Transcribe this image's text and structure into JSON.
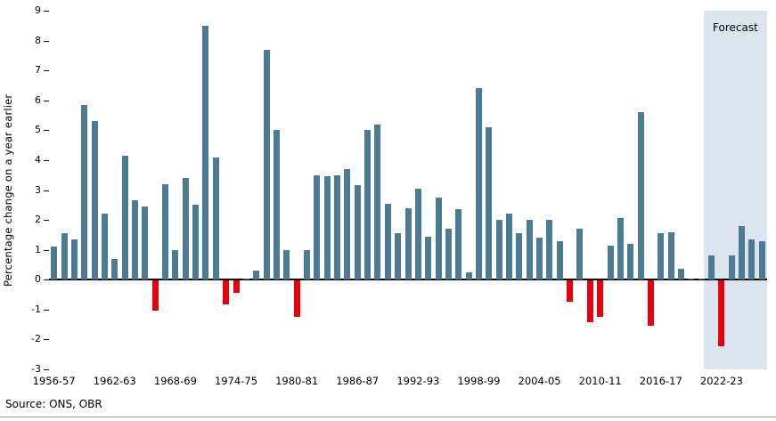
{
  "page": {
    "source_note": "Source: ONS, OBR"
  },
  "chart_data": {
    "type": "bar",
    "title": "",
    "xlabel": "",
    "ylabel": "Percentage change on a year earlier",
    "ylim": [
      -3,
      9
    ],
    "grid": false,
    "legend": "none",
    "yticks": [
      9,
      8,
      7,
      6,
      5,
      4,
      3,
      2,
      1,
      0,
      -1,
      -2,
      -3
    ],
    "xtick_labels": [
      "1956-57",
      "1962-63",
      "1968-69",
      "1974-75",
      "1980-81",
      "1986-87",
      "1992-93",
      "1998-99",
      "2004-05",
      "2010-11",
      "2016-17",
      "2022-23"
    ],
    "xtick_indices": [
      0,
      6,
      12,
      18,
      24,
      30,
      36,
      42,
      48,
      54,
      60,
      66
    ],
    "categories": [
      "1956-57",
      "1957-58",
      "1958-59",
      "1959-60",
      "1960-61",
      "1961-62",
      "1962-63",
      "1963-64",
      "1964-65",
      "1965-66",
      "1966-67",
      "1967-68",
      "1968-69",
      "1969-70",
      "1970-71",
      "1971-72",
      "1972-73",
      "1973-74",
      "1974-75",
      "1975-76",
      "1976-77",
      "1977-78",
      "1978-79",
      "1979-80",
      "1980-81",
      "1981-82",
      "1982-83",
      "1983-84",
      "1984-85",
      "1985-86",
      "1986-87",
      "1987-88",
      "1988-89",
      "1989-90",
      "1990-91",
      "1991-92",
      "1992-93",
      "1993-94",
      "1994-95",
      "1995-96",
      "1996-97",
      "1997-98",
      "1998-99",
      "1999-00",
      "2000-01",
      "2001-02",
      "2002-03",
      "2003-04",
      "2004-05",
      "2005-06",
      "2006-07",
      "2007-08",
      "2008-09",
      "2009-10",
      "2010-11",
      "2011-12",
      "2012-13",
      "2013-14",
      "2014-15",
      "2015-16",
      "2016-17",
      "2017-18",
      "2018-19",
      "2019-20",
      "2020-21",
      "2021-22",
      "2022-23",
      "2023-24",
      "2024-25",
      "2025-26",
      "2026-27"
    ],
    "values": [
      1.1,
      1.55,
      1.35,
      5.85,
      5.3,
      2.2,
      0.7,
      4.15,
      2.65,
      2.45,
      -1.0,
      3.2,
      1.0,
      3.4,
      2.5,
      8.5,
      4.1,
      -0.8,
      -0.4,
      0.05,
      0.3,
      7.7,
      5.0,
      1.0,
      -1.2,
      1.0,
      3.5,
      3.45,
      3.5,
      3.7,
      3.15,
      5.0,
      5.2,
      2.55,
      1.55,
      2.4,
      3.05,
      1.45,
      2.75,
      1.7,
      2.35,
      0.25,
      6.4,
      5.1,
      2.0,
      2.2,
      1.55,
      2.0,
      1.4,
      2.0,
      1.3,
      -0.7,
      1.7,
      -1.4,
      -1.2,
      1.15,
      2.05,
      1.2,
      5.6,
      -1.5,
      1.55,
      1.6,
      0.35,
      0.05,
      0.05,
      0.8,
      -2.2,
      0.8,
      1.8,
      1.35,
      1.3
    ],
    "forecast_label": "Forecast",
    "forecast_start_index": 65,
    "colors": {
      "positive": "#4e7b94",
      "negative": "#e8000d",
      "forecast_band": "#dce5ef",
      "axis": "#000000"
    }
  }
}
